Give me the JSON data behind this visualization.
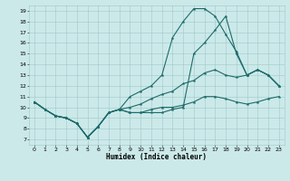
{
  "xlabel": "Humidex (Indice chaleur)",
  "xlim": [
    -0.5,
    23.5
  ],
  "ylim": [
    6.5,
    19.5
  ],
  "xticks": [
    0,
    1,
    2,
    3,
    4,
    5,
    6,
    7,
    8,
    9,
    10,
    11,
    12,
    13,
    14,
    15,
    16,
    17,
    18,
    19,
    20,
    21,
    22,
    23
  ],
  "yticks": [
    7,
    8,
    9,
    10,
    11,
    12,
    13,
    14,
    15,
    16,
    17,
    18,
    19
  ],
  "bg_color": "#cce9e9",
  "grid_color": "#9ec8c8",
  "line_color": "#1e6b6b",
  "lines": [
    [
      10.5,
      9.8,
      9.2,
      9.0,
      8.5,
      7.2,
      8.2,
      9.5,
      9.8,
      11.0,
      11.5,
      12.0,
      13.0,
      16.5,
      18.0,
      19.2,
      19.2,
      18.5,
      16.8,
      15.2,
      13.0,
      13.5,
      13.0,
      12.0
    ],
    [
      10.5,
      9.8,
      9.2,
      9.0,
      8.5,
      7.2,
      8.2,
      9.5,
      9.8,
      9.5,
      9.5,
      9.8,
      10.0,
      10.0,
      10.2,
      10.5,
      11.0,
      11.0,
      10.8,
      10.5,
      10.3,
      10.5,
      10.8,
      11.0
    ],
    [
      10.5,
      9.8,
      9.2,
      9.0,
      8.5,
      7.2,
      8.2,
      9.5,
      9.8,
      10.0,
      10.3,
      10.8,
      11.2,
      11.5,
      12.2,
      12.5,
      13.2,
      13.5,
      13.0,
      12.8,
      13.0,
      13.5,
      13.0,
      12.0
    ],
    [
      10.5,
      9.8,
      9.2,
      9.0,
      8.5,
      7.2,
      8.2,
      9.5,
      9.8,
      9.5,
      9.5,
      9.5,
      9.5,
      9.8,
      10.0,
      15.0,
      16.0,
      17.2,
      18.5,
      15.0,
      13.0,
      13.5,
      13.0,
      12.0
    ]
  ]
}
